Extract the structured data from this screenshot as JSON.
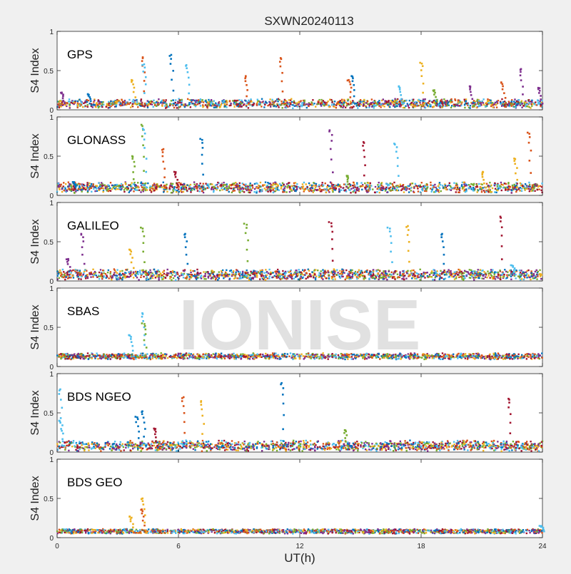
{
  "figure": {
    "title": "SXWN20240113",
    "xlabel": "UT(h)",
    "ylabel": "S4 Index",
    "watermark": "IONISE",
    "background": "#f0f0f0"
  },
  "colors": {
    "blue": "#0072BD",
    "orange": "#D95319",
    "yellow": "#EDB120",
    "purple": "#7E2F8E",
    "green": "#77AC30",
    "cyan": "#4DBEEE",
    "crimson": "#A2142F"
  },
  "chart_data": [
    {
      "type": "scatter",
      "panel_label": "GPS",
      "xlim": [
        0,
        24
      ],
      "ylim": [
        0,
        1
      ],
      "xticks": [
        "0",
        "6",
        "12",
        "18",
        "24"
      ],
      "yticks": [
        "0",
        "0.5",
        "1"
      ],
      "baseline": [
        0.08,
        0.04
      ],
      "spikes": [
        {
          "x": 4.2,
          "y": 0.67,
          "c": "orange"
        },
        {
          "x": 4.25,
          "y": 0.58,
          "c": "cyan"
        },
        {
          "x": 3.7,
          "y": 0.38,
          "c": "yellow"
        },
        {
          "x": 5.6,
          "y": 0.7,
          "c": "blue"
        },
        {
          "x": 6.4,
          "y": 0.57,
          "c": "cyan"
        },
        {
          "x": 9.3,
          "y": 0.43,
          "c": "orange"
        },
        {
          "x": 11.0,
          "y": 0.66,
          "c": "orange"
        },
        {
          "x": 14.6,
          "y": 0.43,
          "c": "blue"
        },
        {
          "x": 14.4,
          "y": 0.38,
          "c": "orange"
        },
        {
          "x": 18.0,
          "y": 0.6,
          "c": "yellow"
        },
        {
          "x": 16.9,
          "y": 0.3,
          "c": "cyan"
        },
        {
          "x": 18.6,
          "y": 0.25,
          "c": "green"
        },
        {
          "x": 20.4,
          "y": 0.3,
          "c": "purple"
        },
        {
          "x": 22.0,
          "y": 0.35,
          "c": "orange"
        },
        {
          "x": 22.9,
          "y": 0.52,
          "c": "purple"
        },
        {
          "x": 23.8,
          "y": 0.28,
          "c": "purple"
        },
        {
          "x": 0.2,
          "y": 0.22,
          "c": "purple"
        },
        {
          "x": 1.5,
          "y": 0.2,
          "c": "blue"
        }
      ]
    },
    {
      "type": "scatter",
      "panel_label": "GLONASS",
      "xlim": [
        0,
        24
      ],
      "ylim": [
        0,
        1
      ],
      "xticks": [
        "0",
        "6",
        "12",
        "18",
        "24"
      ],
      "yticks": [
        "0",
        "0.5",
        "1"
      ],
      "baseline": [
        0.1,
        0.05
      ],
      "spikes": [
        {
          "x": 4.2,
          "y": 0.9,
          "c": "green"
        },
        {
          "x": 4.25,
          "y": 0.85,
          "c": "cyan"
        },
        {
          "x": 3.7,
          "y": 0.5,
          "c": "green"
        },
        {
          "x": 5.2,
          "y": 0.59,
          "c": "orange"
        },
        {
          "x": 7.1,
          "y": 0.72,
          "c": "blue"
        },
        {
          "x": 13.5,
          "y": 0.83,
          "c": "purple"
        },
        {
          "x": 15.1,
          "y": 0.68,
          "c": "crimson"
        },
        {
          "x": 16.7,
          "y": 0.66,
          "c": "cyan"
        },
        {
          "x": 14.3,
          "y": 0.25,
          "c": "green"
        },
        {
          "x": 22.6,
          "y": 0.47,
          "c": "yellow"
        },
        {
          "x": 23.3,
          "y": 0.8,
          "c": "orange"
        },
        {
          "x": 21.0,
          "y": 0.3,
          "c": "yellow"
        },
        {
          "x": 0.8,
          "y": 0.17,
          "c": "blue"
        },
        {
          "x": 5.8,
          "y": 0.3,
          "c": "crimson"
        }
      ]
    },
    {
      "type": "scatter",
      "panel_label": "GALILEO",
      "xlim": [
        0,
        24
      ],
      "ylim": [
        0,
        1
      ],
      "xticks": [
        "0",
        "6",
        "12",
        "18",
        "24"
      ],
      "yticks": [
        "0",
        "0.5",
        "1"
      ],
      "baseline": [
        0.08,
        0.05
      ],
      "spikes": [
        {
          "x": 1.2,
          "y": 0.6,
          "c": "purple"
        },
        {
          "x": 4.2,
          "y": 0.68,
          "c": "green"
        },
        {
          "x": 3.6,
          "y": 0.4,
          "c": "yellow"
        },
        {
          "x": 6.3,
          "y": 0.6,
          "c": "blue"
        },
        {
          "x": 9.3,
          "y": 0.73,
          "c": "green"
        },
        {
          "x": 13.5,
          "y": 0.75,
          "c": "crimson"
        },
        {
          "x": 16.4,
          "y": 0.68,
          "c": "cyan"
        },
        {
          "x": 17.3,
          "y": 0.7,
          "c": "yellow"
        },
        {
          "x": 19.0,
          "y": 0.6,
          "c": "blue"
        },
        {
          "x": 21.9,
          "y": 0.82,
          "c": "crimson"
        },
        {
          "x": 0.5,
          "y": 0.28,
          "c": "purple"
        },
        {
          "x": 22.5,
          "y": 0.2,
          "c": "cyan"
        }
      ]
    },
    {
      "type": "scatter",
      "panel_label": "SBAS",
      "xlim": [
        0,
        24
      ],
      "ylim": [
        0,
        1
      ],
      "xticks": [
        "0",
        "6",
        "12",
        "18",
        "24"
      ],
      "yticks": [
        "0",
        "0.5",
        "1"
      ],
      "baseline": [
        0.13,
        0.02
      ],
      "spikes": [
        {
          "x": 4.2,
          "y": 0.68,
          "c": "cyan"
        },
        {
          "x": 4.25,
          "y": 0.55,
          "c": "green"
        },
        {
          "x": 3.6,
          "y": 0.4,
          "c": "cyan"
        }
      ]
    },
    {
      "type": "scatter",
      "panel_label": "BDS NGEO",
      "xlim": [
        0,
        24
      ],
      "ylim": [
        0,
        1
      ],
      "xticks": [
        "0",
        "6",
        "12",
        "18",
        "24"
      ],
      "yticks": [
        "0",
        "0.5",
        "1"
      ],
      "baseline": [
        0.08,
        0.05
      ],
      "spikes": [
        {
          "x": 0.1,
          "y": 0.8,
          "c": "cyan"
        },
        {
          "x": 0.15,
          "y": 0.4,
          "c": "cyan"
        },
        {
          "x": 3.9,
          "y": 0.45,
          "c": "blue"
        },
        {
          "x": 4.2,
          "y": 0.52,
          "c": "blue"
        },
        {
          "x": 6.2,
          "y": 0.7,
          "c": "orange"
        },
        {
          "x": 7.1,
          "y": 0.65,
          "c": "yellow"
        },
        {
          "x": 11.1,
          "y": 0.88,
          "c": "blue"
        },
        {
          "x": 14.2,
          "y": 0.28,
          "c": "green"
        },
        {
          "x": 22.3,
          "y": 0.68,
          "c": "crimson"
        },
        {
          "x": 4.8,
          "y": 0.3,
          "c": "crimson"
        }
      ]
    },
    {
      "type": "scatter",
      "panel_label": "BDS GEO",
      "xlim": [
        0,
        24
      ],
      "ylim": [
        0,
        1
      ],
      "xticks": [
        "0",
        "6",
        "12",
        "18",
        "24"
      ],
      "yticks": [
        "0",
        "0.5",
        "1"
      ],
      "baseline": [
        0.08,
        0.01
      ],
      "spikes": [
        {
          "x": 3.6,
          "y": 0.27,
          "c": "yellow"
        },
        {
          "x": 4.2,
          "y": 0.5,
          "c": "yellow"
        },
        {
          "x": 4.15,
          "y": 0.36,
          "c": "orange"
        },
        {
          "x": 23.9,
          "y": 0.15,
          "c": "cyan"
        }
      ]
    }
  ]
}
